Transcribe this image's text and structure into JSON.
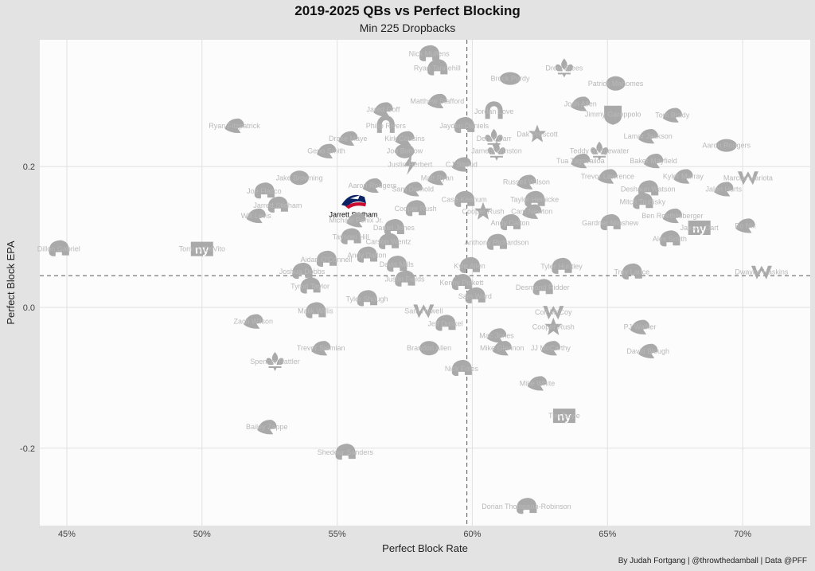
{
  "header": {
    "title": "2019-2025 QBs vs Perfect Blocking",
    "subtitle": "Min 225 Dropbacks",
    "caption": "By Judah Fortgang | @throwthedamball | Data @PFF"
  },
  "colors": {
    "background": "#e3e3e3",
    "panel": "#fcfcfc",
    "logo": "#a9a9a9",
    "label": "#b9b9b9",
    "highlight_navy": "#0b2265",
    "highlight_red": "#c60c30"
  },
  "chart_data": {
    "type": "scatter",
    "title": "2019-2025 QBs vs Perfect Blocking",
    "subtitle": "Min 225 Dropbacks",
    "xlabel": "Perfect Block Rate",
    "ylabel": "Perfect Block EPA",
    "xlim": [
      0.44,
      0.725
    ],
    "ylim": [
      -0.31,
      0.38
    ],
    "x_ticks": [
      0.45,
      0.5,
      0.55,
      0.6,
      0.65,
      0.7
    ],
    "x_tick_labels": [
      "45%",
      "50%",
      "55%",
      "60%",
      "65%",
      "70%"
    ],
    "y_ticks": [
      -0.2,
      0.0,
      0.2
    ],
    "y_tick_labels": [
      "-0.2",
      "0.0",
      "0.2"
    ],
    "reference_lines": {
      "x": 0.598,
      "y": 0.045
    },
    "grid": true,
    "highlight": "Jarrett Stidham",
    "points": [
      {
        "name": "Nick Mullens",
        "x": 0.584,
        "y": 0.36,
        "icon": "helmet-icon"
      },
      {
        "name": "Ryan Tannehill",
        "x": 0.587,
        "y": 0.34,
        "icon": "helmet-icon"
      },
      {
        "name": "Drew Brees",
        "x": 0.634,
        "y": 0.34,
        "icon": "fleur-de-lis-icon"
      },
      {
        "name": "Brock Purdy",
        "x": 0.614,
        "y": 0.325,
        "icon": "oval-logo-icon"
      },
      {
        "name": "Patrick Mahomes",
        "x": 0.653,
        "y": 0.318,
        "icon": "arrowhead-icon"
      },
      {
        "name": "Matthew Stafford",
        "x": 0.587,
        "y": 0.293,
        "icon": "ram-icon"
      },
      {
        "name": "Jared Goff",
        "x": 0.567,
        "y": 0.281,
        "icon": "ram-icon"
      },
      {
        "name": "Jordan Love",
        "x": 0.608,
        "y": 0.278,
        "icon": "g-logo-icon"
      },
      {
        "name": "Josh Allen",
        "x": 0.64,
        "y": 0.289,
        "icon": "buffalo-icon"
      },
      {
        "name": "Jimmy Garoppolo",
        "x": 0.652,
        "y": 0.274,
        "icon": "shield-icon"
      },
      {
        "name": "Tom Brady",
        "x": 0.674,
        "y": 0.273,
        "icon": "ship-icon"
      },
      {
        "name": "Ryan Fitzpatrick",
        "x": 0.512,
        "y": 0.258,
        "icon": "dolphin-icon"
      },
      {
        "name": "Philip Rivers",
        "x": 0.568,
        "y": 0.258,
        "icon": "horseshoe-icon"
      },
      {
        "name": "Jayden Daniels",
        "x": 0.597,
        "y": 0.258,
        "icon": "helmet-icon"
      },
      {
        "name": "Drake Maye",
        "x": 0.554,
        "y": 0.24,
        "icon": "patriot-icon"
      },
      {
        "name": "Kirk Cousins",
        "x": 0.575,
        "y": 0.24,
        "icon": "viking-icon"
      },
      {
        "name": "Derek Carr",
        "x": 0.608,
        "y": 0.24,
        "icon": "fleur-de-lis-icon"
      },
      {
        "name": "Dak Prescott",
        "x": 0.624,
        "y": 0.246,
        "icon": "star-icon"
      },
      {
        "name": "Lamar Jackson",
        "x": 0.665,
        "y": 0.243,
        "icon": "raven-icon"
      },
      {
        "name": "Aaron Rodgers",
        "x": 0.694,
        "y": 0.23,
        "icon": "oval-logo-icon"
      },
      {
        "name": "Teddy Bridgewater",
        "x": 0.647,
        "y": 0.222,
        "icon": "fleur-de-lis-icon"
      },
      {
        "name": "Geno Smith",
        "x": 0.546,
        "y": 0.222,
        "icon": "seahawk-icon"
      },
      {
        "name": "Joe Burrow",
        "x": 0.575,
        "y": 0.222,
        "icon": "tiger-icon"
      },
      {
        "name": "Jameis Winston",
        "x": 0.609,
        "y": 0.222,
        "icon": "fleur-de-lis-icon"
      },
      {
        "name": "Tua Tagovailoa",
        "x": 0.64,
        "y": 0.208,
        "icon": "dolphin-icon"
      },
      {
        "name": "Baker Mayfield",
        "x": 0.667,
        "y": 0.208,
        "icon": "ship-icon"
      },
      {
        "name": "Justin Herbert",
        "x": 0.577,
        "y": 0.203,
        "icon": "bolt-icon"
      },
      {
        "name": "CJ Stroud",
        "x": 0.596,
        "y": 0.203,
        "icon": "bull-icon"
      },
      {
        "name": "Jake Browning",
        "x": 0.536,
        "y": 0.184,
        "icon": "tiger-icon"
      },
      {
        "name": "Matt Ryan",
        "x": 0.587,
        "y": 0.184,
        "icon": "falcon-icon"
      },
      {
        "name": "Russell Wilson",
        "x": 0.62,
        "y": 0.178,
        "icon": "horse-icon"
      },
      {
        "name": "Trevor Lawrence",
        "x": 0.65,
        "y": 0.186,
        "icon": "jaguar-icon"
      },
      {
        "name": "Kyler Murray",
        "x": 0.678,
        "y": 0.186,
        "icon": "cardinal-icon"
      },
      {
        "name": "Marcus Mariota",
        "x": 0.702,
        "y": 0.184,
        "icon": "w-logo-icon"
      },
      {
        "name": "Aaron Rodgers",
        "x": 0.563,
        "y": 0.173,
        "icon": "jet-icon"
      },
      {
        "name": "Sam Darnold",
        "x": 0.578,
        "y": 0.168,
        "icon": "panther-icon"
      },
      {
        "name": "Deshaun Watson",
        "x": 0.665,
        "y": 0.168,
        "icon": "helmet-icon"
      },
      {
        "name": "Jalen Hurts",
        "x": 0.693,
        "y": 0.168,
        "icon": "eagle-icon"
      },
      {
        "name": "Joe Flacco",
        "x": 0.523,
        "y": 0.165,
        "icon": "helmet-icon"
      },
      {
        "name": "Case Keenum",
        "x": 0.597,
        "y": 0.153,
        "icon": "helmet-icon"
      },
      {
        "name": "Taylor Heinicke",
        "x": 0.623,
        "y": 0.153,
        "icon": "helmet-icon"
      },
      {
        "name": "Jarrett Stidham",
        "x": 0.556,
        "y": 0.15,
        "icon": "patriot-icon"
      },
      {
        "name": "Jarrett Stidham",
        "x": 0.528,
        "y": 0.145,
        "icon": "helmet-icon"
      },
      {
        "name": "Cooper Rush",
        "x": 0.579,
        "y": 0.14,
        "icon": "helmet-icon"
      },
      {
        "name": "Mitch Trubisky",
        "x": 0.663,
        "y": 0.15,
        "icon": "helmet-icon"
      },
      {
        "name": "Cooper Rush",
        "x": 0.604,
        "y": 0.136,
        "icon": "star-icon"
      },
      {
        "name": "Cam Newton",
        "x": 0.622,
        "y": 0.136,
        "icon": "panther-icon"
      },
      {
        "name": "Ben Roethlisberger",
        "x": 0.674,
        "y": 0.13,
        "icon": "steeler-icon"
      },
      {
        "name": "Will Levis",
        "x": 0.52,
        "y": 0.13,
        "icon": "titan-icon"
      },
      {
        "name": "Michael Penix Jr.",
        "x": 0.557,
        "y": 0.124,
        "icon": "falcon-icon"
      },
      {
        "name": "Andy Dalton",
        "x": 0.614,
        "y": 0.12,
        "icon": "helmet-icon"
      },
      {
        "name": "Gardner Minshew",
        "x": 0.651,
        "y": 0.12,
        "icon": "helmet-icon"
      },
      {
        "name": "Jaxson Dart",
        "x": 0.684,
        "y": 0.113,
        "icon": "ny-logo-icon"
      },
      {
        "name": "Bo Nix",
        "x": 0.701,
        "y": 0.116,
        "icon": "bronco-icon"
      },
      {
        "name": "Daniel Jones",
        "x": 0.571,
        "y": 0.113,
        "icon": "helmet-icon"
      },
      {
        "name": "Taysom Hill",
        "x": 0.555,
        "y": 0.1,
        "icon": "helmet-icon"
      },
      {
        "name": "Anthony Richardson",
        "x": 0.609,
        "y": 0.092,
        "icon": "helmet-icon"
      },
      {
        "name": "Alex Smith",
        "x": 0.673,
        "y": 0.097,
        "icon": "helmet-icon"
      },
      {
        "name": "Carson Wentz",
        "x": 0.569,
        "y": 0.093,
        "icon": "helmet-icon"
      },
      {
        "name": "Dillon Gabriel",
        "x": 0.447,
        "y": 0.083,
        "icon": "helmet-icon"
      },
      {
        "name": "Tommy DeVito",
        "x": 0.5,
        "y": 0.083,
        "icon": "ny-logo-icon"
      },
      {
        "name": "Andy Dalton",
        "x": 0.561,
        "y": 0.074,
        "icon": "helmet-icon"
      },
      {
        "name": "Aidan O'Connell",
        "x": 0.546,
        "y": 0.068,
        "icon": "helmet-icon"
      },
      {
        "name": "Davis Mills",
        "x": 0.572,
        "y": 0.061,
        "icon": "helmet-icon"
      },
      {
        "name": "Kyle Allen",
        "x": 0.599,
        "y": 0.059,
        "icon": "helmet-icon"
      },
      {
        "name": "Tyler Huntley",
        "x": 0.633,
        "y": 0.058,
        "icon": "helmet-icon"
      },
      {
        "name": "Joshua Dobbs",
        "x": 0.537,
        "y": 0.051,
        "icon": "helmet-icon"
      },
      {
        "name": "Trey Lance",
        "x": 0.659,
        "y": 0.05,
        "icon": "helmet-icon"
      },
      {
        "name": "Dwayne Haskins",
        "x": 0.707,
        "y": 0.05,
        "icon": "w-logo-icon"
      },
      {
        "name": "Justin Fields",
        "x": 0.575,
        "y": 0.04,
        "icon": "helmet-icon"
      },
      {
        "name": "Kenny Pickett",
        "x": 0.596,
        "y": 0.035,
        "icon": "helmet-icon"
      },
      {
        "name": "Desmond Ridder",
        "x": 0.626,
        "y": 0.028,
        "icon": "helmet-icon"
      },
      {
        "name": "Tyrod Taylor",
        "x": 0.54,
        "y": 0.03,
        "icon": "helmet-icon"
      },
      {
        "name": "Sam Ward",
        "x": 0.601,
        "y": 0.016,
        "icon": "helmet-icon"
      },
      {
        "name": "Tyler Shough",
        "x": 0.561,
        "y": 0.012,
        "icon": "helmet-icon"
      },
      {
        "name": "Malik Willis",
        "x": 0.542,
        "y": -0.005,
        "icon": "helmet-icon"
      },
      {
        "name": "Sam Howell",
        "x": 0.582,
        "y": -0.005,
        "icon": "w-logo-icon"
      },
      {
        "name": "Colt McCoy",
        "x": 0.63,
        "y": -0.007,
        "icon": "w-logo-icon"
      },
      {
        "name": "Zach Wilson",
        "x": 0.519,
        "y": -0.02,
        "icon": "jet-icon"
      },
      {
        "name": "Jeff Driskel",
        "x": 0.59,
        "y": -0.023,
        "icon": "helmet-icon"
      },
      {
        "name": "Cooper Rush",
        "x": 0.63,
        "y": -0.028,
        "icon": "star-icon"
      },
      {
        "name": "PJ Walker",
        "x": 0.662,
        "y": -0.028,
        "icon": "panther-icon"
      },
      {
        "name": "Mac Jones",
        "x": 0.609,
        "y": -0.04,
        "icon": "patriot-icon"
      },
      {
        "name": "Trevor Siemian",
        "x": 0.544,
        "y": -0.058,
        "icon": "bronco-icon"
      },
      {
        "name": "Brandon Allen",
        "x": 0.584,
        "y": -0.058,
        "icon": "bengal-icon"
      },
      {
        "name": "Mike Glennon",
        "x": 0.611,
        "y": -0.058,
        "icon": "seahawk-icon"
      },
      {
        "name": "JJ McCarthy",
        "x": 0.629,
        "y": -0.058,
        "icon": "viking-icon"
      },
      {
        "name": "David Blough",
        "x": 0.665,
        "y": -0.062,
        "icon": "lion-icon"
      },
      {
        "name": "Spencer Rattler",
        "x": 0.527,
        "y": -0.077,
        "icon": "fleur-de-lis-icon"
      },
      {
        "name": "Nick Foles",
        "x": 0.596,
        "y": -0.087,
        "icon": "helmet-icon"
      },
      {
        "name": "Mike White",
        "x": 0.624,
        "y": -0.108,
        "icon": "jet-icon"
      },
      {
        "name": "Tim Boyle",
        "x": 0.634,
        "y": -0.154,
        "icon": "ny-logo-icon"
      },
      {
        "name": "Bailey Zappe",
        "x": 0.524,
        "y": -0.17,
        "icon": "patriot-icon"
      },
      {
        "name": "Shedeur Sanders",
        "x": 0.553,
        "y": -0.206,
        "icon": "helmet-icon"
      },
      {
        "name": "Dorian Thompson-Robinson",
        "x": 0.62,
        "y": -0.283,
        "icon": "helmet-icon"
      }
    ]
  }
}
